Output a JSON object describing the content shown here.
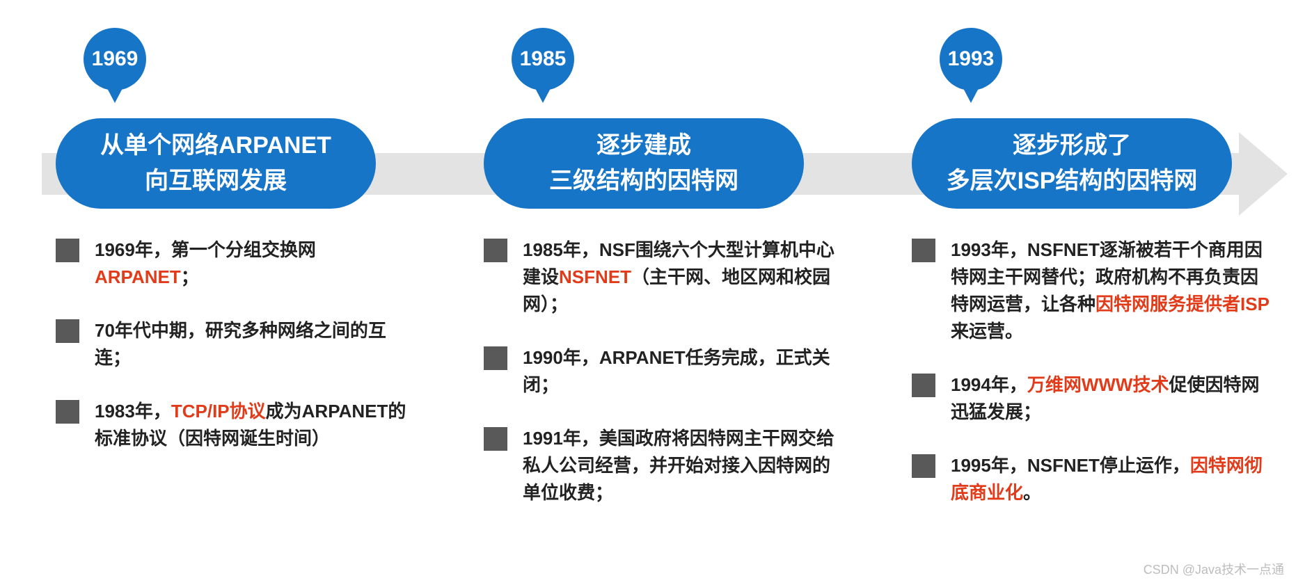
{
  "colors": {
    "primary": "#1775c8",
    "arrow": "#e3e3e3",
    "bullet_square": "#595959",
    "highlight": "#e13b1a",
    "text": "#222222",
    "background": "#ffffff",
    "watermark": "#bdbdbd"
  },
  "typography": {
    "pin_year_fontsize": 30,
    "pill_title_fontsize": 34,
    "bullet_fontsize": 26,
    "font_family": "Microsoft YaHei"
  },
  "layout": {
    "type": "infographic",
    "stage_count": 3,
    "arrow_direction": "right",
    "pill_radius": 65,
    "pin_diameter": 90
  },
  "stages": [
    {
      "year": "1969",
      "title_l1": "从单个网络ARPANET",
      "title_l2": "向互联网发展",
      "bullets": [
        {
          "pre": "1969年，第一个分组交换网",
          "hl": "ARPANET",
          "post": "；"
        },
        {
          "pre": "70年代中期，研究多种网络之间的互连；",
          "hl": "",
          "post": ""
        },
        {
          "pre": "1983年，",
          "hl": "TCP/IP协议",
          "post": "成为ARPANET的标准协议（因特网诞生时间）"
        }
      ]
    },
    {
      "year": "1985",
      "title_l1": "逐步建成",
      "title_l2": "三级结构的因特网",
      "bullets": [
        {
          "pre": "1985年，NSF围绕六个大型计算机中心建设",
          "hl": "NSFNET",
          "post": "（主干网、地区网和校园网）；"
        },
        {
          "pre": "1990年，ARPANET任务完成，正式关闭；",
          "hl": "",
          "post": ""
        },
        {
          "pre": "1991年，美国政府将因特网主干网交给私人公司经营，并开始对接入因特网的单位收费；",
          "hl": "",
          "post": ""
        }
      ]
    },
    {
      "year": "1993",
      "title_l1": "逐步形成了",
      "title_l2": "多层次ISP结构的因特网",
      "bullets": [
        {
          "pre": "1993年，NSFNET逐渐被若干个商用因特网主干网替代；政府机构不再负责因特网运营，让各种",
          "hl": "因特网服务提供者ISP",
          "post": "来运营。"
        },
        {
          "pre": "1994年，",
          "hl": "万维网WWW技术",
          "post": "促使因特网迅猛发展；"
        },
        {
          "pre": "1995年，NSFNET停止运作，",
          "hl": "因特网彻底商业化",
          "post": "。"
        }
      ]
    }
  ],
  "watermark": "CSDN @Java技术一点通"
}
